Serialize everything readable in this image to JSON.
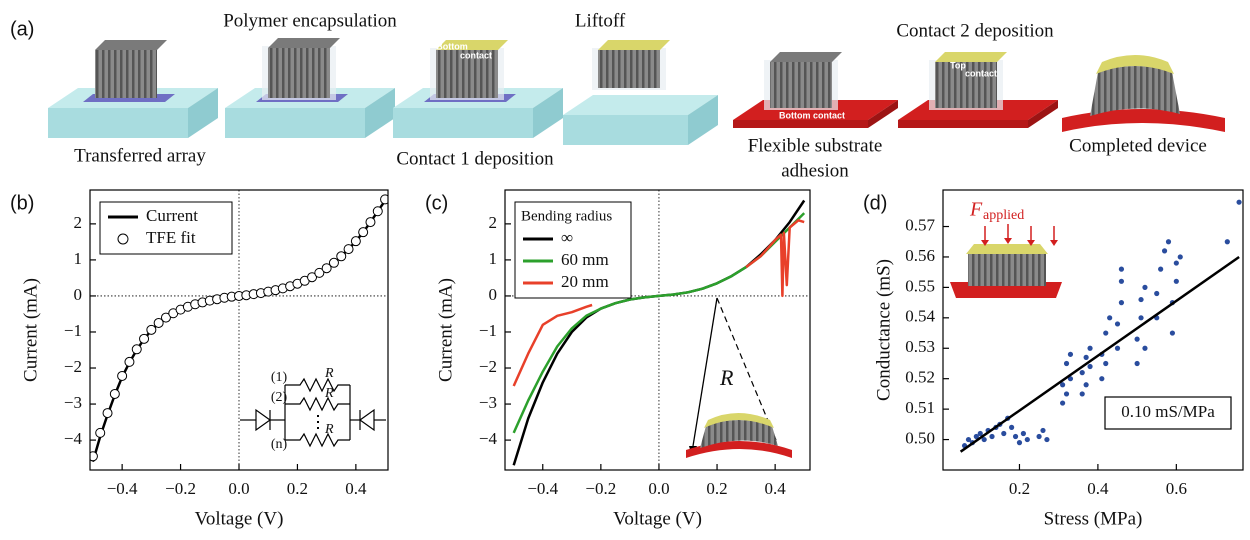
{
  "panel_a": {
    "panel_label": "(a)",
    "captions": [
      "Polymer encapsulation",
      "Liftoff",
      "Contact 2 deposition",
      "Transferred array",
      "Contact 1 deposition",
      "Flexible substrate",
      "adhesion",
      "Completed device"
    ],
    "inset_labels": [
      "Bottom",
      "contact",
      "Top",
      "contact",
      "Bottom contact"
    ]
  },
  "chart_data": [
    {
      "type": "line",
      "panel_label": "(b)",
      "xlabel": "Voltage (V)",
      "ylabel": "Current (mA)",
      "xlim": [
        -0.51,
        0.51
      ],
      "ylim": [
        -4.83,
        2.94
      ],
      "xticks": [
        {
          "value": -0.4,
          "label": "−0.4"
        },
        {
          "value": -0.2,
          "label": "−0.2"
        },
        {
          "value": 0,
          "label": "0.0"
        },
        0.2,
        0.4
      ],
      "yticks": [
        2,
        1,
        0,
        {
          "value": -1,
          "label": "−1"
        },
        {
          "value": -2,
          "label": "−2"
        },
        {
          "value": -3,
          "label": "−3"
        },
        {
          "value": -4,
          "label": "−4"
        }
      ],
      "zero_lines": true,
      "legend_position": "upper left",
      "x": [
        -0.5,
        -0.475,
        -0.45,
        -0.425,
        -0.4,
        -0.375,
        -0.35,
        -0.325,
        -0.3,
        -0.275,
        -0.25,
        -0.225,
        -0.2,
        -0.175,
        -0.15,
        -0.125,
        -0.1,
        -0.075,
        -0.05,
        -0.025,
        0,
        0.025,
        0.05,
        0.075,
        0.1,
        0.125,
        0.15,
        0.175,
        0.2,
        0.225,
        0.25,
        0.275,
        0.3,
        0.325,
        0.35,
        0.375,
        0.4,
        0.425,
        0.45,
        0.475,
        0.5
      ],
      "series": [
        {
          "name": "Current",
          "style": "line",
          "color": "#000000",
          "values": [
            -4.6,
            -3.9,
            -3.3,
            -2.75,
            -2.25,
            -1.85,
            -1.5,
            -1.2,
            -0.95,
            -0.76,
            -0.6,
            -0.48,
            -0.38,
            -0.3,
            -0.23,
            -0.18,
            -0.13,
            -0.09,
            -0.05,
            -0.02,
            0,
            0.02,
            0.05,
            0.08,
            0.12,
            0.16,
            0.21,
            0.27,
            0.34,
            0.42,
            0.52,
            0.64,
            0.77,
            0.92,
            1.1,
            1.3,
            1.52,
            1.77,
            2.05,
            2.35,
            2.65
          ]
        },
        {
          "name": "TFE fit",
          "style": "markers",
          "color": "#000000",
          "values": [
            -4.45,
            -3.8,
            -3.25,
            -2.72,
            -2.22,
            -1.83,
            -1.48,
            -1.19,
            -0.94,
            -0.75,
            -0.6,
            -0.48,
            -0.38,
            -0.3,
            -0.23,
            -0.18,
            -0.13,
            -0.09,
            -0.05,
            -0.02,
            0,
            0.02,
            0.05,
            0.08,
            0.12,
            0.16,
            0.21,
            0.27,
            0.34,
            0.42,
            0.52,
            0.64,
            0.77,
            0.92,
            1.1,
            1.3,
            1.52,
            1.77,
            2.05,
            2.35,
            2.68
          ]
        }
      ],
      "annotations": [
        "(1)",
        "(2)",
        "(n)",
        "R",
        "R",
        "R"
      ]
    },
    {
      "type": "line",
      "panel_label": "(c)",
      "xlabel": "Voltage (V)",
      "ylabel": "Current (mA)",
      "xlim": [
        -0.53,
        0.52
      ],
      "ylim": [
        -4.83,
        2.94
      ],
      "xticks": [
        {
          "value": -0.4,
          "label": "−0.4"
        },
        {
          "value": -0.2,
          "label": "−0.2"
        },
        {
          "value": 0,
          "label": "0.0"
        },
        0.2,
        0.4
      ],
      "yticks": [
        2,
        1,
        0,
        {
          "value": -1,
          "label": "−1"
        },
        {
          "value": -2,
          "label": "−2"
        },
        {
          "value": -3,
          "label": "−3"
        },
        {
          "value": -4,
          "label": "−4"
        }
      ],
      "zero_lines": true,
      "legend_position": "upper left",
      "legend_title": "Bending radius",
      "x": [
        -0.5,
        -0.45,
        -0.4,
        -0.35,
        -0.3,
        -0.25,
        -0.2,
        -0.15,
        -0.1,
        -0.05,
        0,
        0.05,
        0.1,
        0.15,
        0.2,
        0.25,
        0.3,
        0.35,
        0.4,
        0.45,
        0.5
      ],
      "series": [
        {
          "name": "∞",
          "style": "line",
          "color": "#000000",
          "values": [
            -4.7,
            -3.4,
            -2.4,
            -1.6,
            -1.0,
            -0.6,
            -0.35,
            -0.2,
            -0.1,
            -0.04,
            0,
            0.04,
            0.1,
            0.2,
            0.35,
            0.55,
            0.8,
            1.15,
            1.55,
            2.05,
            2.65
          ]
        },
        {
          "name": "60 mm",
          "style": "line",
          "color": "#2ca02c",
          "values": [
            -3.8,
            -2.9,
            -2.1,
            -1.4,
            -0.9,
            -0.55,
            -0.35,
            -0.2,
            -0.1,
            -0.04,
            0,
            0.04,
            0.1,
            0.2,
            0.35,
            0.55,
            0.8,
            1.1,
            1.5,
            1.9,
            2.3
          ]
        },
        {
          "name": "20 mm",
          "style": "line",
          "color": "#e8402a",
          "x": [
            -0.5,
            -0.45,
            -0.4,
            -0.35,
            -0.3,
            -0.25,
            -0.23,
            0,
            0.3,
            0.35,
            0.4,
            0.42,
            0.425,
            0.43,
            0.44,
            0.45,
            0.48,
            0.5
          ],
          "values": [
            -2.5,
            -1.6,
            -0.8,
            -0.55,
            -0.45,
            -0.3,
            -0.25,
            null,
            0.8,
            1.1,
            1.55,
            1.7,
            0.0,
            1.75,
            0.3,
            1.9,
            2.1,
            2.05
          ]
        }
      ],
      "annotations": [
        "R"
      ]
    },
    {
      "type": "scatter",
      "panel_label": "(d)",
      "xlabel": "Stress (MPa)",
      "ylabel": "Conductance (mS)",
      "xlim": [
        0.005,
        0.77
      ],
      "ylim": [
        0.49,
        0.582
      ],
      "xticks": [
        0.2,
        0.4,
        0.6
      ],
      "yticks": [
        {
          "value": 0.5,
          "label": "0.50"
        },
        0.51,
        0.52,
        0.53,
        0.54,
        0.55,
        0.56,
        0.57
      ],
      "series": [
        {
          "style": "markers-filled",
          "color": "#2a4d9e",
          "x": [
            0.06,
            0.07,
            0.08,
            0.09,
            0.1,
            0.11,
            0.12,
            0.13,
            0.14,
            0.15,
            0.16,
            0.17,
            0.18,
            0.19,
            0.2,
            0.21,
            0.22,
            0.25,
            0.26,
            0.27,
            0.31,
            0.31,
            0.32,
            0.32,
            0.33,
            0.33,
            0.36,
            0.36,
            0.37,
            0.37,
            0.38,
            0.38,
            0.41,
            0.41,
            0.42,
            0.42,
            0.43,
            0.45,
            0.45,
            0.46,
            0.46,
            0.46,
            0.5,
            0.5,
            0.51,
            0.51,
            0.52,
            0.52,
            0.55,
            0.55,
            0.56,
            0.57,
            0.58,
            0.59,
            0.59,
            0.6,
            0.6,
            0.61,
            0.73,
            0.76
          ],
          "values": [
            0.498,
            0.5,
            0.499,
            0.501,
            0.502,
            0.5,
            0.503,
            0.501,
            0.504,
            0.505,
            0.502,
            0.507,
            0.504,
            0.501,
            0.499,
            0.502,
            0.5,
            0.501,
            0.503,
            0.5,
            0.512,
            0.518,
            0.525,
            0.515,
            0.528,
            0.52,
            0.515,
            0.522,
            0.527,
            0.518,
            0.53,
            0.524,
            0.52,
            0.528,
            0.535,
            0.525,
            0.54,
            0.53,
            0.538,
            0.545,
            0.552,
            0.556,
            0.525,
            0.533,
            0.54,
            0.546,
            0.55,
            0.53,
            0.54,
            0.548,
            0.556,
            0.562,
            0.565,
            0.535,
            0.545,
            0.552,
            0.558,
            0.56,
            0.565,
            0.578
          ]
        },
        {
          "style": "line",
          "color": "#000000",
          "x": [
            0.05,
            0.76
          ],
          "values": [
            0.496,
            0.56
          ]
        }
      ],
      "annotations": [
        "0.10 mS/MPa",
        "F",
        "applied"
      ]
    }
  ]
}
